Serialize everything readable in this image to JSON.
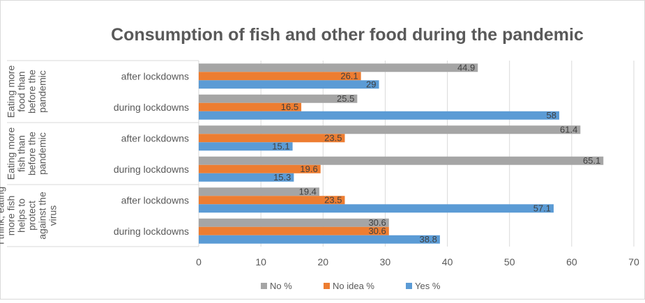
{
  "chart_data": {
    "type": "bar",
    "orientation": "horizontal",
    "title": "Consumption of fish and other food during the pandemic",
    "xlim": [
      0,
      70
    ],
    "xticks": [
      0,
      10,
      20,
      30,
      40,
      50,
      60,
      70
    ],
    "grid": true,
    "legend_position": "bottom",
    "groups": [
      {
        "label": "Eating more food than before the pandemic",
        "label_lines": [
          "Eating more",
          "food than",
          "before the",
          "pandemic"
        ],
        "categories": [
          {
            "label": "after lockdowns",
            "values": {
              "no": 44.9,
              "noidea": 26.1,
              "yes": 29
            }
          },
          {
            "label": "during lockdowns",
            "values": {
              "no": 25.5,
              "noidea": 16.5,
              "yes": 58
            }
          }
        ]
      },
      {
        "label": "Eating more fish than before the pandemic",
        "label_lines": [
          "Eating more",
          "fish than",
          "before the",
          "pandemic"
        ],
        "categories": [
          {
            "label": "after lockdowns",
            "values": {
              "no": 61.4,
              "noidea": 23.5,
              "yes": 15.1
            }
          },
          {
            "label": "during lockdowns",
            "values": {
              "no": 65.1,
              "noidea": 19.6,
              "yes": 15.3
            }
          }
        ]
      },
      {
        "label": "I think, eating more fish helps to protect against the virus",
        "label_lines": [
          "I think, eating",
          "more fish",
          "helps to",
          "protect",
          "against the",
          "virus"
        ],
        "categories": [
          {
            "label": "after lockdowns",
            "values": {
              "no": 19.4,
              "noidea": 23.5,
              "yes": 57.1
            }
          },
          {
            "label": "during lockdowns",
            "values": {
              "no": 30.6,
              "noidea": 30.6,
              "yes": 38.8
            }
          }
        ]
      }
    ],
    "series": [
      {
        "key": "no",
        "name": "No %",
        "color": "#a5a5a5"
      },
      {
        "key": "noidea",
        "name": "No idea %",
        "color": "#ed7d31"
      },
      {
        "key": "yes",
        "name": "Yes %",
        "color": "#5b9bd5"
      }
    ]
  }
}
